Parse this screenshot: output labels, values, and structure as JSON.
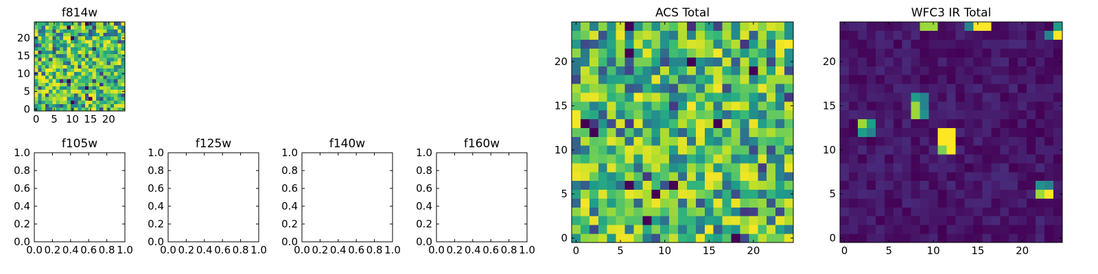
{
  "figure": {
    "background": "#ffffff",
    "colormap": "viridis",
    "colormap_stops": [
      "#440154",
      "#482878",
      "#3e4989",
      "#31688e",
      "#26828e",
      "#1f9e89",
      "#35b779",
      "#6ece58",
      "#b5de2b",
      "#fde725"
    ]
  },
  "chart_data": [
    {
      "id": "f814w",
      "type": "heatmap",
      "title": "f814w",
      "grid_size": 25,
      "xlim": [
        -0.5,
        24.5
      ],
      "ylim": [
        -0.5,
        24.5
      ],
      "xticks": [
        0,
        5,
        10,
        15,
        20
      ],
      "yticks": [
        0,
        5,
        10,
        15,
        20
      ],
      "grid": false,
      "origin": "lower",
      "pattern": "random-noise",
      "value_range": [
        0.1,
        1.0
      ]
    },
    {
      "id": "f105w",
      "type": "scatter",
      "title": "f105w",
      "xlim": [
        0,
        1
      ],
      "ylim": [
        0,
        1
      ],
      "xticks": [
        "0.0",
        "0.2",
        "0.4",
        "0.6",
        "0.8",
        "1.0"
      ],
      "yticks": [
        "0.0",
        "0.2",
        "0.4",
        "0.6",
        "0.8",
        "1.0"
      ],
      "grid": false,
      "empty": true
    },
    {
      "id": "f125w",
      "type": "scatter",
      "title": "f125w",
      "xlim": [
        0,
        1
      ],
      "ylim": [
        0,
        1
      ],
      "xticks": [
        "0.0",
        "0.2",
        "0.4",
        "0.6",
        "0.8",
        "1.0"
      ],
      "yticks": [
        "0.0",
        "0.2",
        "0.4",
        "0.6",
        "0.8",
        "1.0"
      ],
      "grid": false,
      "empty": true
    },
    {
      "id": "f140w",
      "type": "scatter",
      "title": "f140w",
      "xlim": [
        0,
        1
      ],
      "ylim": [
        0,
        1
      ],
      "xticks": [
        "0.0",
        "0.2",
        "0.4",
        "0.6",
        "0.8",
        "1.0"
      ],
      "yticks": [
        "0.0",
        "0.2",
        "0.4",
        "0.6",
        "0.8",
        "1.0"
      ],
      "grid": false,
      "empty": true
    },
    {
      "id": "f160w",
      "type": "scatter",
      "title": "f160w",
      "xlim": [
        0,
        1
      ],
      "ylim": [
        0,
        1
      ],
      "xticks": [
        "0.0",
        "0.2",
        "0.4",
        "0.6",
        "0.8",
        "1.0"
      ],
      "yticks": [
        "0.0",
        "0.2",
        "0.4",
        "0.6",
        "0.8",
        "1.0"
      ],
      "grid": false,
      "empty": true
    },
    {
      "id": "acs-total",
      "type": "heatmap",
      "title": "ACS Total",
      "grid_size": 25,
      "xlim": [
        -0.5,
        24.5
      ],
      "ylim": [
        -0.5,
        24.5
      ],
      "xticks": [
        0,
        5,
        10,
        15,
        20
      ],
      "yticks": [
        0,
        5,
        10,
        15,
        20
      ],
      "grid": false,
      "origin": "lower",
      "pattern": "random-noise",
      "value_range": [
        0.1,
        1.0
      ]
    },
    {
      "id": "wfc3-ir-total",
      "type": "heatmap",
      "title": "WFC3 IR Total",
      "grid_size": 25,
      "xlim": [
        -0.5,
        24.5
      ],
      "ylim": [
        -0.5,
        24.5
      ],
      "xticks": [
        0,
        5,
        10,
        15,
        20
      ],
      "yticks": [
        0,
        5,
        10,
        15,
        20
      ],
      "grid": false,
      "origin": "lower",
      "pattern": "low-background-with-sources",
      "background_range": [
        0.0,
        0.12
      ],
      "hot_pixels": [
        {
          "x": 2,
          "y": 13,
          "value": 0.85
        },
        {
          "x": 3,
          "y": 13,
          "value": 0.55
        },
        {
          "x": 2,
          "y": 12,
          "value": 0.55
        },
        {
          "x": 3,
          "y": 12,
          "value": 0.45
        },
        {
          "x": 8,
          "y": 16,
          "value": 0.55
        },
        {
          "x": 9,
          "y": 16,
          "value": 0.45
        },
        {
          "x": 8,
          "y": 15,
          "value": 0.85
        },
        {
          "x": 9,
          "y": 15,
          "value": 0.45
        },
        {
          "x": 8,
          "y": 14,
          "value": 0.85
        },
        {
          "x": 9,
          "y": 14,
          "value": 0.5
        },
        {
          "x": 11,
          "y": 12,
          "value": 1.0
        },
        {
          "x": 12,
          "y": 12,
          "value": 1.0
        },
        {
          "x": 11,
          "y": 11,
          "value": 1.0
        },
        {
          "x": 12,
          "y": 11,
          "value": 1.0
        },
        {
          "x": 11,
          "y": 10,
          "value": 0.8
        },
        {
          "x": 12,
          "y": 10,
          "value": 1.0
        },
        {
          "x": 22,
          "y": 6,
          "value": 0.5
        },
        {
          "x": 23,
          "y": 6,
          "value": 0.45
        },
        {
          "x": 22,
          "y": 5,
          "value": 0.85
        },
        {
          "x": 23,
          "y": 5,
          "value": 1.0
        },
        {
          "x": 9,
          "y": 24,
          "value": 0.85
        },
        {
          "x": 10,
          "y": 24,
          "value": 0.85
        },
        {
          "x": 14,
          "y": 24,
          "value": 0.45
        },
        {
          "x": 15,
          "y": 24,
          "value": 1.0
        },
        {
          "x": 16,
          "y": 24,
          "value": 1.0
        },
        {
          "x": 24,
          "y": 24,
          "value": 0.55
        },
        {
          "x": 24,
          "y": 23,
          "value": 1.0
        },
        {
          "x": 23,
          "y": 23,
          "value": 0.45
        }
      ]
    }
  ]
}
